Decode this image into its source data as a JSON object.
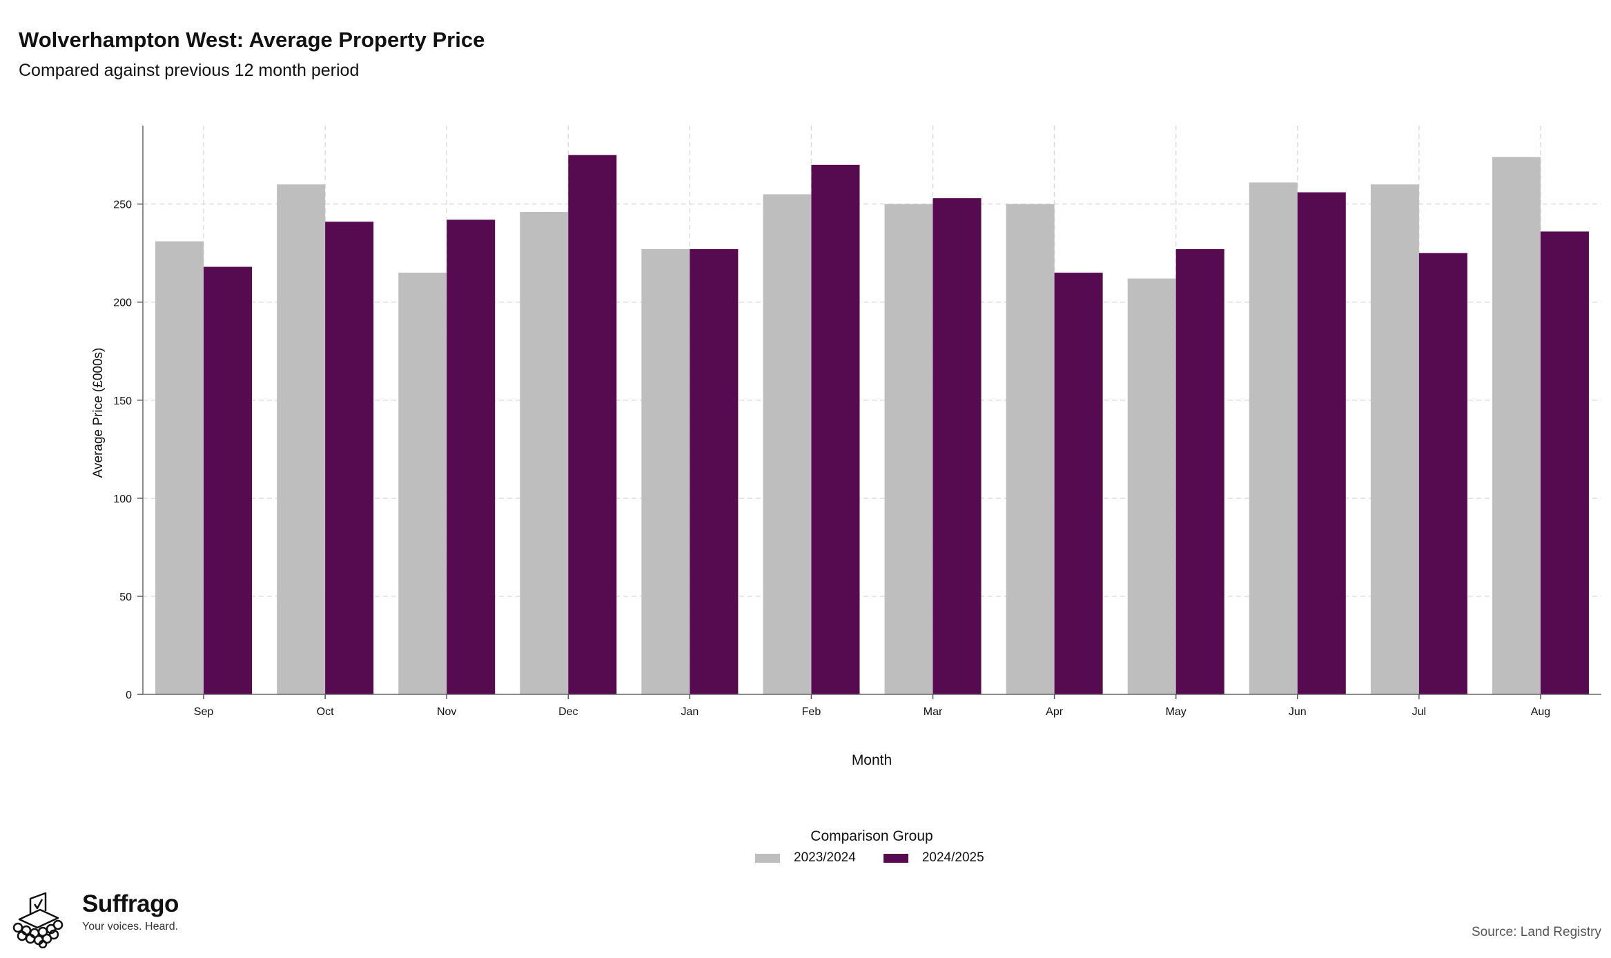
{
  "header": {
    "title": "Wolverhampton West: Average Property Price",
    "subtitle": "Compared against previous 12 month period"
  },
  "chart_data": {
    "type": "bar",
    "categories": [
      "Sep",
      "Oct",
      "Nov",
      "Dec",
      "Jan",
      "Feb",
      "Mar",
      "Apr",
      "May",
      "Jun",
      "Jul",
      "Aug"
    ],
    "series": [
      {
        "name": "2023/2024",
        "color": "#bebebe",
        "values": [
          231,
          260,
          215,
          246,
          227,
          255,
          250,
          250,
          212,
          261,
          260,
          274
        ]
      },
      {
        "name": "2024/2025",
        "color": "#560a50",
        "values": [
          218,
          241,
          242,
          275,
          227,
          270,
          253,
          215,
          227,
          256,
          225,
          236
        ]
      }
    ],
    "xlabel": "Month",
    "ylabel": "Average Price (£000s)",
    "ylim": [
      0,
      290
    ],
    "yticks": [
      0,
      50,
      100,
      150,
      200,
      250
    ],
    "grid": true,
    "legend": {
      "title": "Comparison Group",
      "position": "bottom-center"
    }
  },
  "brand": {
    "name": "Suffrago",
    "tagline": "Your voices. Heard.",
    "icon": "ballot-box-icon"
  },
  "footer": {
    "source": "Source: Land Registry"
  }
}
